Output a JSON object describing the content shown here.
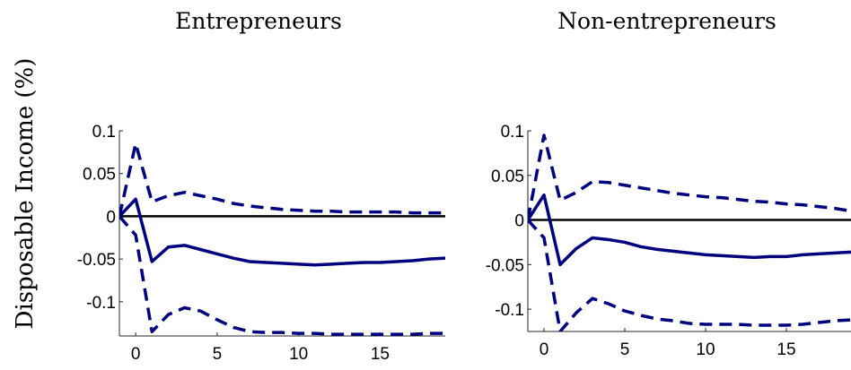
{
  "figure": {
    "ylabel": "Disposable Income (%)"
  },
  "colors": {
    "series": "#00007f",
    "zero_line": "#000000",
    "axes": "#262626"
  },
  "chart_data": [
    {
      "type": "line",
      "title": "Entrepreneurs",
      "xlabel": "",
      "ylabel": "Disposable Income (%)",
      "xlim": [
        -1,
        19
      ],
      "ylim": [
        -0.14,
        0.1
      ],
      "xticks": [
        "0",
        "5",
        "10",
        "15"
      ],
      "yticks": [
        "0.1",
        "0.05",
        "0",
        "-0.05",
        "-0.1"
      ],
      "zero_line": 0,
      "x": [
        -1,
        0,
        1,
        2,
        3,
        4,
        5,
        6,
        7,
        8,
        9,
        10,
        11,
        12,
        13,
        14,
        15,
        16,
        17,
        18,
        19
      ],
      "series": [
        {
          "role": "point estimate",
          "style": "solid",
          "values": [
            0.0,
            0.02,
            -0.053,
            -0.036,
            -0.034,
            -0.039,
            -0.044,
            -0.049,
            -0.053,
            -0.054,
            -0.055,
            -0.056,
            -0.057,
            -0.056,
            -0.055,
            -0.054,
            -0.054,
            -0.053,
            -0.052,
            -0.05,
            -0.049
          ]
        },
        {
          "role": "upper band",
          "style": "dashed",
          "values": [
            0.0,
            0.085,
            0.017,
            0.024,
            0.028,
            0.024,
            0.02,
            0.015,
            0.012,
            0.01,
            0.008,
            0.007,
            0.006,
            0.006,
            0.005,
            0.005,
            0.005,
            0.005,
            0.004,
            0.004,
            0.004
          ]
        },
        {
          "role": "lower band",
          "style": "dashed",
          "values": [
            0.0,
            -0.022,
            -0.135,
            -0.115,
            -0.107,
            -0.111,
            -0.121,
            -0.13,
            -0.135,
            -0.136,
            -0.136,
            -0.137,
            -0.137,
            -0.138,
            -0.138,
            -0.138,
            -0.138,
            -0.138,
            -0.138,
            -0.137,
            -0.137
          ]
        }
      ]
    },
    {
      "type": "line",
      "title": "Non-entrepreneurs",
      "xlabel": "",
      "ylabel": "",
      "xlim": [
        -1,
        19
      ],
      "ylim": [
        -0.125,
        0.1
      ],
      "xticks": [
        "0",
        "5",
        "10",
        "15"
      ],
      "yticks": [
        "0.1",
        "0.05",
        "0",
        "-0.05",
        "-0.1"
      ],
      "zero_line": 0,
      "x": [
        -1,
        0,
        1,
        2,
        3,
        4,
        5,
        6,
        7,
        8,
        9,
        10,
        11,
        12,
        13,
        14,
        15,
        16,
        17,
        18,
        19
      ],
      "series": [
        {
          "role": "point estimate",
          "style": "solid",
          "values": [
            0.0,
            0.028,
            -0.05,
            -0.032,
            -0.02,
            -0.022,
            -0.025,
            -0.03,
            -0.033,
            -0.035,
            -0.037,
            -0.039,
            -0.04,
            -0.041,
            -0.042,
            -0.041,
            -0.041,
            -0.039,
            -0.038,
            -0.037,
            -0.036
          ]
        },
        {
          "role": "upper band",
          "style": "dashed",
          "values": [
            0.0,
            0.095,
            0.022,
            0.031,
            0.043,
            0.042,
            0.039,
            0.036,
            0.033,
            0.03,
            0.028,
            0.026,
            0.025,
            0.023,
            0.021,
            0.02,
            0.018,
            0.017,
            0.015,
            0.013,
            0.01
          ]
        },
        {
          "role": "lower band",
          "style": "dashed",
          "values": [
            0.0,
            -0.02,
            -0.125,
            -0.104,
            -0.088,
            -0.094,
            -0.102,
            -0.107,
            -0.111,
            -0.113,
            -0.116,
            -0.117,
            -0.117,
            -0.117,
            -0.118,
            -0.118,
            -0.118,
            -0.117,
            -0.115,
            -0.113,
            -0.112
          ]
        }
      ]
    }
  ]
}
